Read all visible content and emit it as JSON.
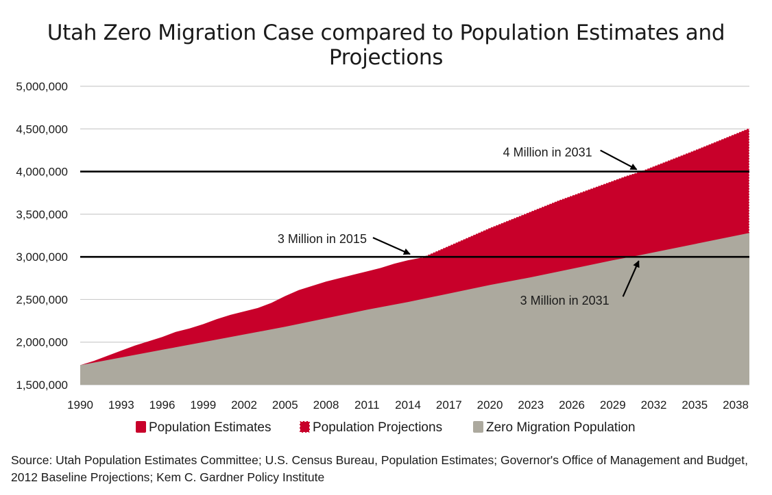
{
  "chart_data": {
    "type": "area",
    "title": "Utah Zero Migration Case compared to Population Estimates and Projections",
    "xlabel": "",
    "ylabel": "",
    "xlim": [
      1990,
      2039
    ],
    "ylim": [
      1500000,
      5000000
    ],
    "yticks": [
      1500000,
      2000000,
      2500000,
      3000000,
      3500000,
      4000000,
      4500000,
      5000000
    ],
    "ytick_labels": [
      "1,500,000",
      "2,000,000",
      "2,500,000",
      "3,000,000",
      "3,500,000",
      "4,000,000",
      "4,500,000",
      "5,000,000"
    ],
    "xticks": [
      1990,
      1993,
      1996,
      1999,
      2002,
      2005,
      2008,
      2011,
      2014,
      2017,
      2020,
      2023,
      2026,
      2029,
      2032,
      2035,
      2038
    ],
    "xtick_labels": [
      "1990",
      "1993",
      "1996",
      "1999",
      "2002",
      "2005",
      "2008",
      "2011",
      "2014",
      "2017",
      "2020",
      "2023",
      "2026",
      "2029",
      "2032",
      "2035",
      "2038"
    ],
    "grid": "horizontal",
    "legend_position": "bottom",
    "colors": {
      "estimates": "#c8002a",
      "projections": "#c8002a",
      "zero_migration": "#aca99e",
      "gridline": "#cccccc",
      "reference_line": "#000000"
    },
    "series": [
      {
        "name": "Population Estimates",
        "x": [
          1990,
          1991,
          1992,
          1993,
          1994,
          1995,
          1996,
          1997,
          1998,
          1999,
          2000,
          2001,
          2002,
          2003,
          2004,
          2005,
          2006,
          2007,
          2008,
          2009,
          2010,
          2011,
          2012,
          2013,
          2014,
          2015
        ],
        "y": [
          1730000,
          1780000,
          1840000,
          1900000,
          1960000,
          2010000,
          2060000,
          2120000,
          2160000,
          2210000,
          2270000,
          2320000,
          2360000,
          2400000,
          2460000,
          2540000,
          2610000,
          2660000,
          2710000,
          2750000,
          2790000,
          2830000,
          2870000,
          2920000,
          2960000,
          2990000
        ]
      },
      {
        "name": "Population Projections",
        "x": [
          2015,
          2020,
          2025,
          2030,
          2031,
          2035,
          2039
        ],
        "y": [
          2990000,
          3340000,
          3660000,
          3950000,
          4000000,
          4250000,
          4510000
        ]
      },
      {
        "name": "Zero Migration Population",
        "x": [
          1990,
          1993,
          1996,
          1999,
          2002,
          2005,
          2008,
          2011,
          2014,
          2017,
          2020,
          2023,
          2026,
          2029,
          2031,
          2035,
          2039
        ],
        "y": [
          1730000,
          1820000,
          1910000,
          2000000,
          2090000,
          2180000,
          2280000,
          2380000,
          2470000,
          2570000,
          2670000,
          2760000,
          2860000,
          2960000,
          3020000,
          3150000,
          3280000
        ]
      }
    ],
    "reference_lines": [
      3000000,
      4000000
    ],
    "annotations": [
      {
        "text": "4 Million in 2031",
        "x": 2031,
        "y": 4000000
      },
      {
        "text": "3 Million in 2015",
        "x": 2015,
        "y": 3000000
      },
      {
        "text": "3 Million in 2031",
        "x": 2031,
        "y": 3000000
      }
    ]
  },
  "source": "Source: Utah Population Estimates Committee; U.S. Census Bureau, Population Estimates; Governor's Office of Management and Budget, 2012 Baseline Projections; Kem C. Gardner Policy Institute"
}
